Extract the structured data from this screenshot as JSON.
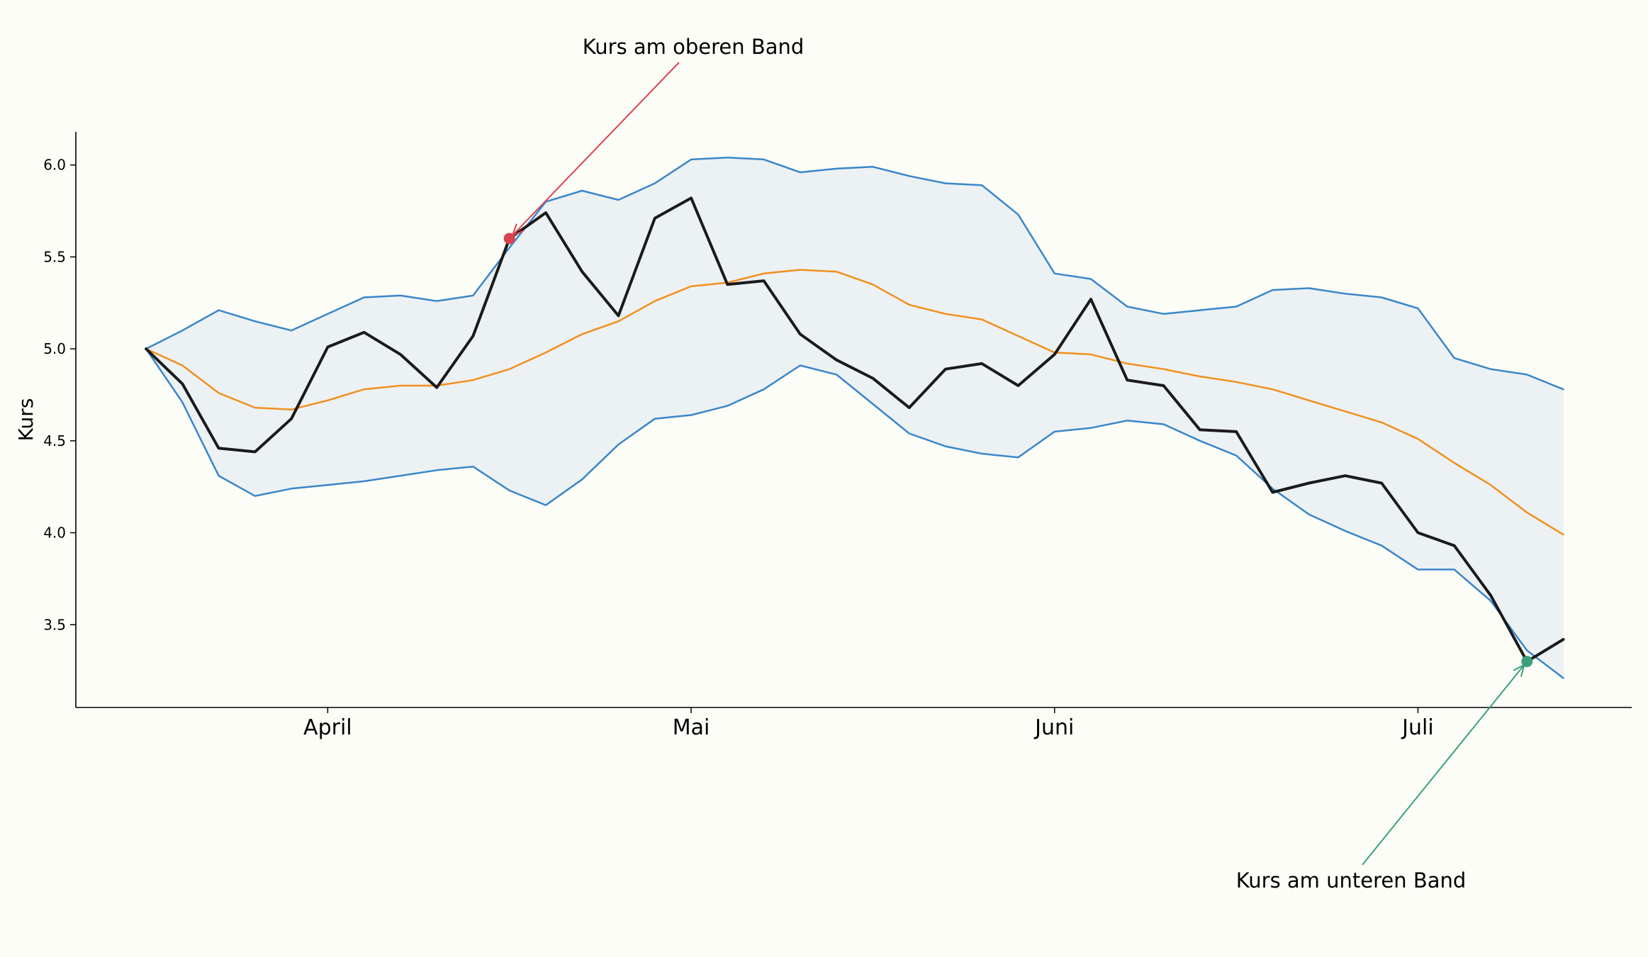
{
  "chart_data": {
    "type": "line",
    "ylabel": "Kurs",
    "xlabel": "",
    "ylim": [
      3.05,
      6.18
    ],
    "grid": false,
    "x_tick_labels": [
      "April",
      "Mai",
      "Juni",
      "Juli"
    ],
    "x_tick_positions": [
      5,
      15,
      25,
      35
    ],
    "y_ticks": [
      "3.5",
      "4.0",
      "4.5",
      "5.0",
      "5.5",
      "6.0"
    ],
    "x_count": 40,
    "series": [
      {
        "color": "#1a1a1a",
        "values": [
          5.0,
          4.81,
          4.46,
          4.44,
          4.62,
          5.01,
          5.09,
          4.97,
          4.79,
          5.07,
          5.6,
          5.74,
          5.42,
          5.18,
          5.71,
          5.82,
          5.35,
          5.37,
          5.08,
          4.94,
          4.84,
          4.68,
          4.89,
          4.92,
          4.8,
          4.97,
          5.27,
          4.83,
          4.8,
          4.56,
          4.55,
          4.22,
          4.27,
          4.31,
          4.27,
          4.0,
          3.93,
          3.66,
          3.3,
          3.42
        ]
      },
      {
        "color": "#f0901c",
        "values": [
          5.0,
          4.91,
          4.76,
          4.68,
          4.67,
          4.72,
          4.78,
          4.8,
          4.8,
          4.83,
          4.89,
          4.98,
          5.08,
          5.15,
          5.26,
          5.34,
          5.36,
          5.41,
          5.43,
          5.42,
          5.35,
          5.24,
          5.19,
          5.16,
          5.07,
          4.98,
          4.97,
          4.92,
          4.89,
          4.85,
          4.82,
          4.78,
          4.72,
          4.66,
          4.6,
          4.51,
          4.38,
          4.26,
          4.11,
          3.99
        ]
      },
      {
        "color": "#3a86c8",
        "values": [
          5.0,
          5.1,
          5.21,
          5.15,
          5.1,
          5.19,
          5.28,
          5.29,
          5.26,
          5.29,
          5.55,
          5.8,
          5.86,
          5.81,
          5.9,
          6.03,
          6.04,
          6.03,
          5.96,
          5.98,
          5.99,
          5.94,
          5.9,
          5.89,
          5.73,
          5.41,
          5.38,
          5.23,
          5.19,
          5.21,
          5.23,
          5.32,
          5.33,
          5.3,
          5.28,
          5.22,
          4.95,
          4.89,
          4.86,
          4.78
        ]
      },
      {
        "color": "#3a86c8",
        "values": [
          5.0,
          4.71,
          4.31,
          4.2,
          4.24,
          4.26,
          4.28,
          4.31,
          4.34,
          4.36,
          4.23,
          4.15,
          4.29,
          4.48,
          4.62,
          4.64,
          4.69,
          4.78,
          4.91,
          4.86,
          4.7,
          4.54,
          4.47,
          4.43,
          4.41,
          4.55,
          4.57,
          4.61,
          4.59,
          4.5,
          4.42,
          4.24,
          4.1,
          4.01,
          3.93,
          3.8,
          3.8,
          3.63,
          3.36,
          3.21
        ]
      }
    ],
    "band_color": "#ecf1f4",
    "annotations": [
      {
        "text": "Kurs am oberen Band",
        "point_index": 10,
        "value": 5.6,
        "color": "#d9434f"
      },
      {
        "text": "Kurs am unteren Band",
        "point_index": 38,
        "value": 3.3,
        "color": "#3ba07a"
      }
    ]
  }
}
